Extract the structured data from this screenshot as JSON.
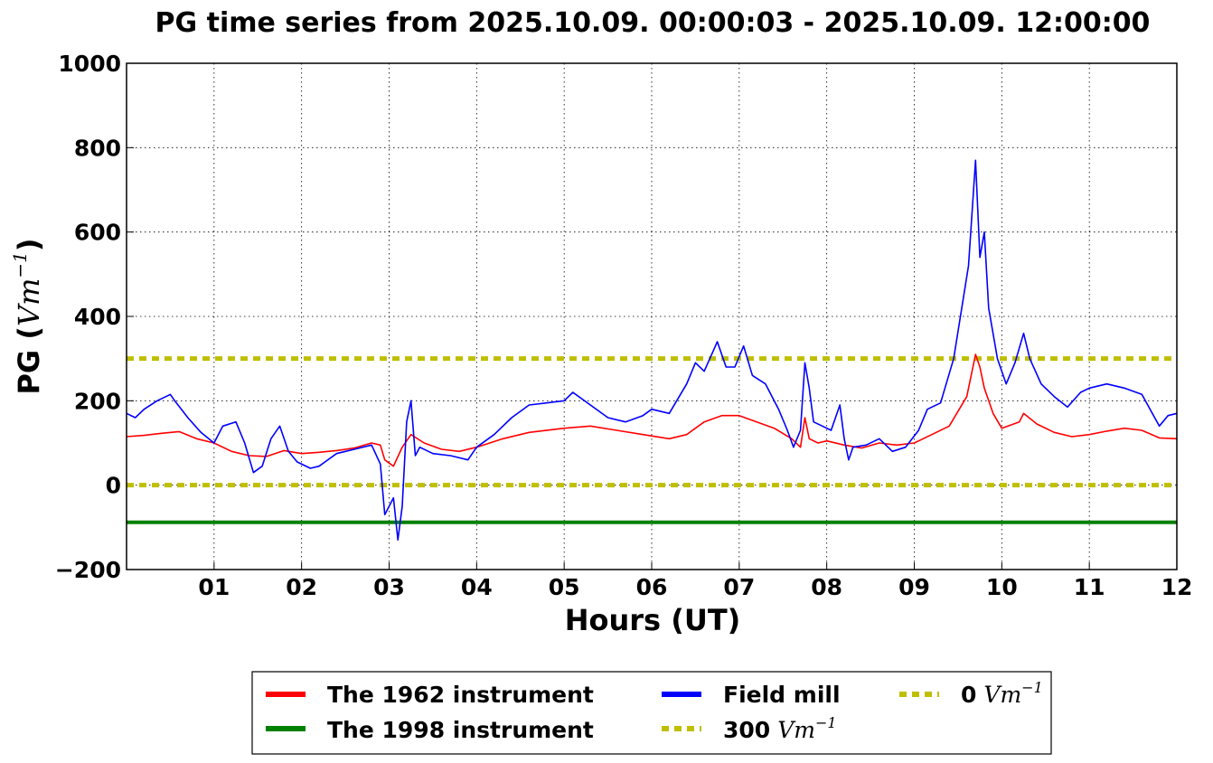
{
  "chart_data": {
    "type": "line",
    "title": "PG time series from 2025.10.09. 00:00:03 - 2025.10.09. 12:00:00",
    "xlabel": "Hours (UT)",
    "ylabel_prefix": "PG (",
    "ylabel_math": "Vm",
    "ylabel_exp": "−1",
    "ylabel_suffix": ")",
    "xlim": [
      0,
      12
    ],
    "ylim": [
      -200,
      1000
    ],
    "x_ticks": [
      "01",
      "02",
      "03",
      "04",
      "05",
      "06",
      "07",
      "08",
      "09",
      "10",
      "11",
      "12"
    ],
    "y_ticks": [
      "−200",
      "0",
      "200",
      "400",
      "600",
      "800",
      "1000"
    ],
    "grid": true,
    "legend_position": "bottom-center",
    "series": [
      {
        "name": "The 1962 instrument",
        "color": "#ff0000",
        "x": [
          0,
          0.2,
          0.4,
          0.6,
          0.8,
          1.0,
          1.2,
          1.4,
          1.6,
          1.8,
          2.0,
          2.2,
          2.4,
          2.6,
          2.8,
          2.9,
          2.95,
          3.05,
          3.15,
          3.25,
          3.4,
          3.6,
          3.8,
          4.0,
          4.3,
          4.6,
          5.0,
          5.3,
          5.6,
          5.9,
          6.2,
          6.4,
          6.6,
          6.8,
          7.0,
          7.2,
          7.4,
          7.6,
          7.7,
          7.75,
          7.8,
          7.9,
          8.0,
          8.2,
          8.4,
          8.6,
          8.8,
          9.0,
          9.2,
          9.4,
          9.6,
          9.7,
          9.75,
          9.8,
          9.9,
          10.0,
          10.2,
          10.25,
          10.4,
          10.6,
          10.8,
          11.0,
          11.2,
          11.4,
          11.6,
          11.8,
          12.0
        ],
        "y": [
          115,
          118,
          123,
          127,
          110,
          100,
          80,
          70,
          68,
          82,
          75,
          78,
          82,
          88,
          100,
          95,
          60,
          45,
          90,
          120,
          100,
          85,
          80,
          90,
          110,
          125,
          135,
          140,
          130,
          120,
          110,
          120,
          150,
          165,
          165,
          150,
          135,
          110,
          90,
          160,
          110,
          100,
          105,
          95,
          88,
          100,
          95,
          100,
          120,
          140,
          210,
          310,
          280,
          230,
          170,
          135,
          150,
          170,
          145,
          125,
          115,
          120,
          128,
          135,
          130,
          112,
          110
        ]
      },
      {
        "name": "The 1998 instrument",
        "color": "#008000",
        "x": [
          0,
          12
        ],
        "y": [
          -88,
          -88
        ]
      },
      {
        "name": "Field mill",
        "color": "#0000ff",
        "x": [
          0,
          0.1,
          0.2,
          0.35,
          0.5,
          0.55,
          0.7,
          0.85,
          1.0,
          1.1,
          1.25,
          1.35,
          1.45,
          1.55,
          1.65,
          1.75,
          1.85,
          1.95,
          2.1,
          2.2,
          2.4,
          2.6,
          2.8,
          2.9,
          2.95,
          3.05,
          3.1,
          3.15,
          3.2,
          3.25,
          3.3,
          3.35,
          3.5,
          3.7,
          3.9,
          4.0,
          4.2,
          4.4,
          4.6,
          4.8,
          5.0,
          5.1,
          5.3,
          5.5,
          5.7,
          5.9,
          6.0,
          6.2,
          6.4,
          6.5,
          6.6,
          6.75,
          6.85,
          6.95,
          7.05,
          7.15,
          7.3,
          7.45,
          7.55,
          7.62,
          7.7,
          7.75,
          7.8,
          7.85,
          7.95,
          8.05,
          8.15,
          8.2,
          8.25,
          8.3,
          8.45,
          8.6,
          8.75,
          8.9,
          9.05,
          9.15,
          9.3,
          9.45,
          9.55,
          9.62,
          9.7,
          9.75,
          9.8,
          9.85,
          9.95,
          10.05,
          10.15,
          10.25,
          10.32,
          10.45,
          10.6,
          10.75,
          10.9,
          11.0,
          11.2,
          11.4,
          11.6,
          11.8,
          11.9,
          12.0
        ],
        "y": [
          170,
          160,
          180,
          200,
          215,
          200,
          160,
          125,
          100,
          140,
          150,
          100,
          30,
          45,
          110,
          140,
          80,
          55,
          40,
          45,
          75,
          85,
          95,
          50,
          -70,
          -30,
          -130,
          -50,
          150,
          200,
          70,
          90,
          75,
          70,
          60,
          90,
          120,
          160,
          190,
          195,
          200,
          220,
          190,
          160,
          150,
          165,
          180,
          170,
          240,
          290,
          270,
          340,
          280,
          280,
          330,
          260,
          240,
          180,
          130,
          90,
          130,
          290,
          230,
          150,
          140,
          130,
          190,
          110,
          60,
          90,
          95,
          110,
          80,
          90,
          130,
          180,
          195,
          300,
          430,
          520,
          770,
          540,
          600,
          420,
          300,
          240,
          290,
          360,
          300,
          240,
          210,
          185,
          220,
          230,
          240,
          230,
          215,
          140,
          165,
          170
        ]
      }
    ],
    "reference_lines": [
      {
        "name_text": "300",
        "name_math": "Vm",
        "name_exp": "−1",
        "color": "#bfbf00",
        "y": 300
      },
      {
        "name_text": "0",
        "name_math": "Vm",
        "name_exp": "−1",
        "color": "#bfbf00",
        "y": 0
      }
    ]
  }
}
